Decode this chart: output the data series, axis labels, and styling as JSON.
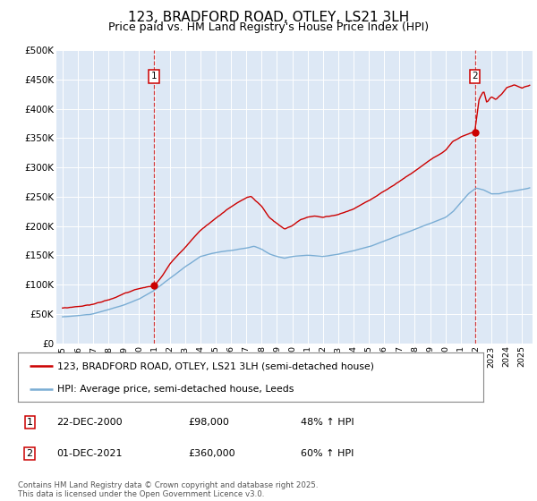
{
  "title": "123, BRADFORD ROAD, OTLEY, LS21 3LH",
  "subtitle": "Price paid vs. HM Land Registry's House Price Index (HPI)",
  "ylim": [
    0,
    500000
  ],
  "yticks": [
    0,
    50000,
    100000,
    150000,
    200000,
    250000,
    300000,
    350000,
    400000,
    450000,
    500000
  ],
  "ytick_labels": [
    "£0",
    "£50K",
    "£100K",
    "£150K",
    "£200K",
    "£250K",
    "£300K",
    "£350K",
    "£400K",
    "£450K",
    "£500K"
  ],
  "background_color": "#dde8f5",
  "red_color": "#cc0000",
  "blue_color": "#7aadd4",
  "sale1_year": 2000.96,
  "sale1_price": 98000,
  "sale2_year": 2021.92,
  "sale2_price": 360000,
  "legend_line1": "123, BRADFORD ROAD, OTLEY, LS21 3LH (semi-detached house)",
  "legend_line2": "HPI: Average price, semi-detached house, Leeds",
  "ann1_num": "1",
  "ann1_date": "22-DEC-2000",
  "ann1_price": "£98,000",
  "ann1_hpi": "48% ↑ HPI",
  "ann2_num": "2",
  "ann2_date": "01-DEC-2021",
  "ann2_price": "£360,000",
  "ann2_hpi": "60% ↑ HPI",
  "footer": "Contains HM Land Registry data © Crown copyright and database right 2025.\nThis data is licensed under the Open Government Licence v3.0.",
  "title_fontsize": 11,
  "subtitle_fontsize": 9
}
